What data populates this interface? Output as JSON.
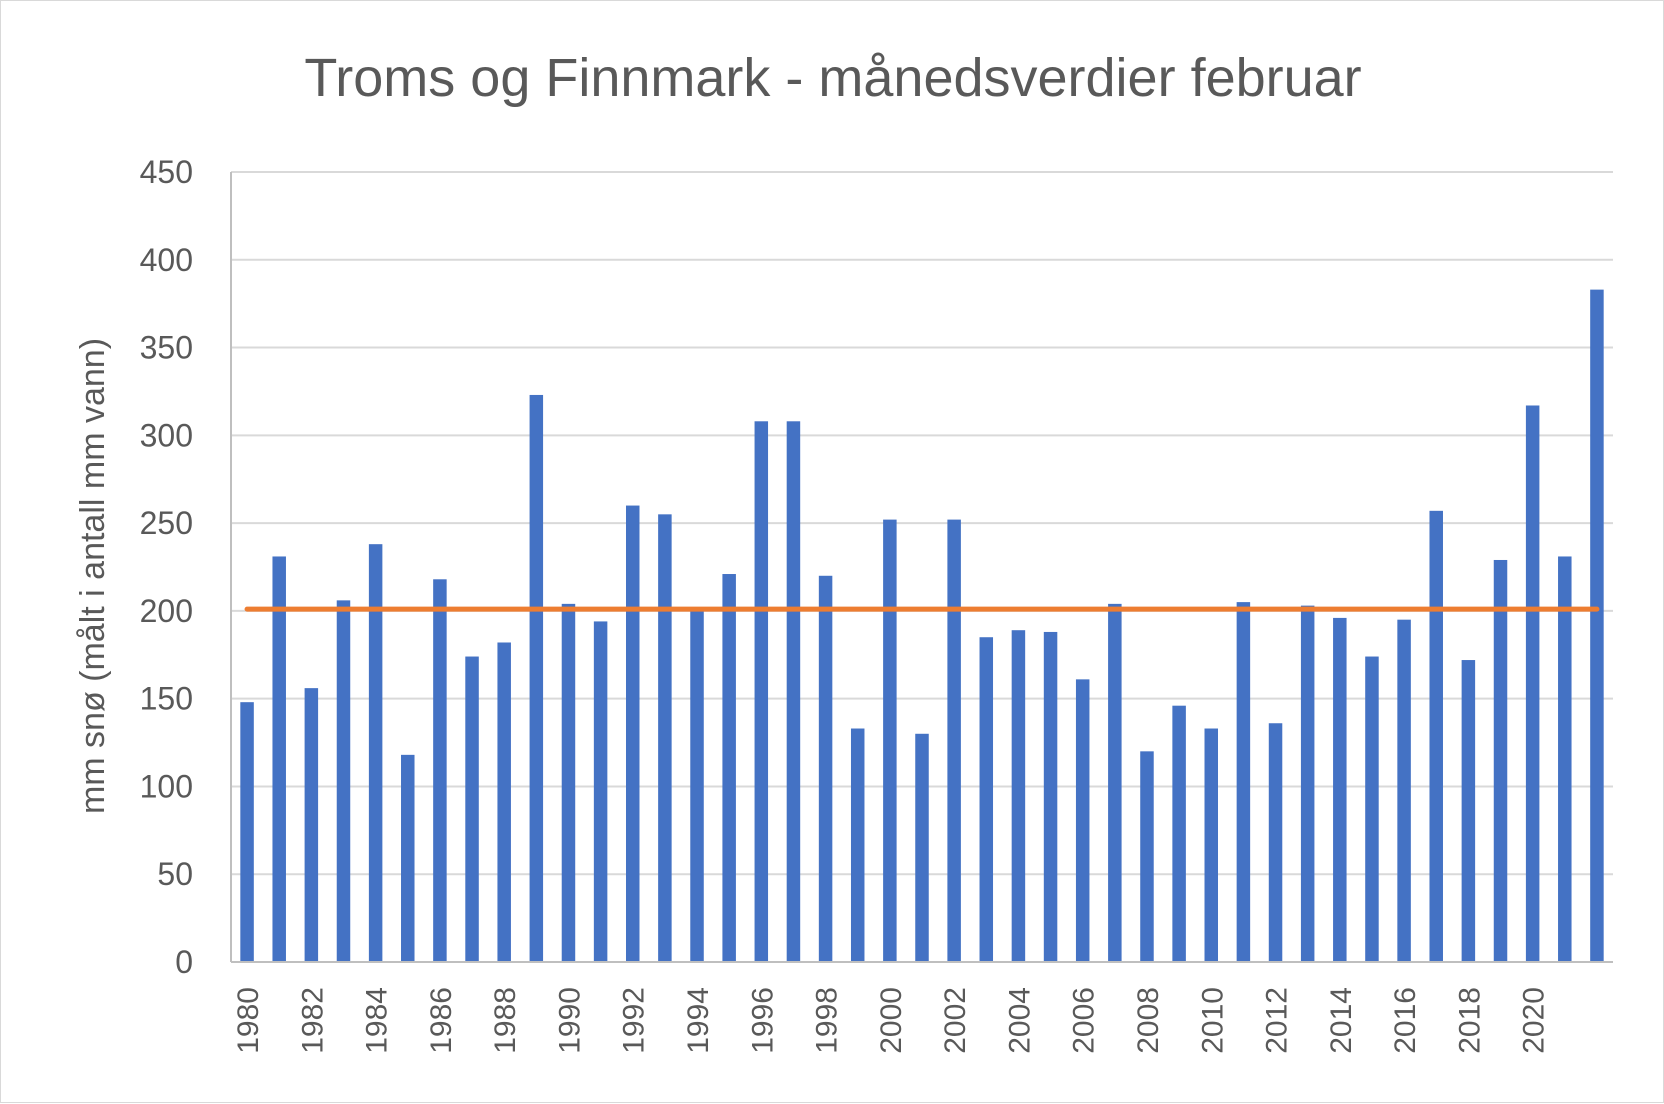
{
  "chart_data": {
    "type": "bar",
    "title": "Troms og Finnmark - månedsverdier februar",
    "xlabel": "",
    "ylabel": "mm snø (målt i antall mm vann)",
    "ylim": [
      0,
      450
    ],
    "yticks": [
      0,
      50,
      100,
      150,
      200,
      250,
      300,
      350,
      400,
      450
    ],
    "grid": true,
    "legend": "none",
    "categories": [
      1980,
      1981,
      1982,
      1983,
      1984,
      1985,
      1986,
      1987,
      1988,
      1989,
      1990,
      1991,
      1992,
      1993,
      1994,
      1995,
      1996,
      1997,
      1998,
      1999,
      2000,
      2001,
      2002,
      2003,
      2004,
      2005,
      2006,
      2007,
      2008,
      2009,
      2010,
      2011,
      2012,
      2013,
      2014,
      2015,
      2016,
      2017,
      2018,
      2019,
      2020,
      2021,
      2022
    ],
    "xtick_labels": [
      "1980",
      "1982",
      "1984",
      "1986",
      "1988",
      "1990",
      "1992",
      "1994",
      "1996",
      "1998",
      "2000",
      "2002",
      "2004",
      "2006",
      "2008",
      "2010",
      "2012",
      "2014",
      "2016",
      "2018",
      "2020"
    ],
    "series": [
      {
        "type": "bar",
        "color": "#4472c4",
        "values": [
          148,
          231,
          156,
          206,
          238,
          118,
          218,
          174,
          182,
          323,
          204,
          194,
          260,
          255,
          200,
          221,
          308,
          308,
          220,
          133,
          252,
          130,
          252,
          185,
          189,
          188,
          161,
          204,
          120,
          146,
          133,
          205,
          136,
          203,
          196,
          174,
          195,
          257,
          172,
          229,
          317,
          231,
          383
        ]
      },
      {
        "type": "line",
        "color": "#ed7d31",
        "values": [
          201,
          201,
          201,
          201,
          201,
          201,
          201,
          201,
          201,
          201,
          201,
          201,
          201,
          201,
          201,
          201,
          201,
          201,
          201,
          201,
          201,
          201,
          201,
          201,
          201,
          201,
          201,
          201,
          201,
          201,
          201,
          201,
          201,
          201,
          201,
          201,
          201,
          201,
          201,
          201,
          201,
          201,
          201
        ]
      }
    ],
    "colors": {
      "grid": "#d9d9d9",
      "axis": "#bfbfbf",
      "text": "#595959"
    }
  }
}
